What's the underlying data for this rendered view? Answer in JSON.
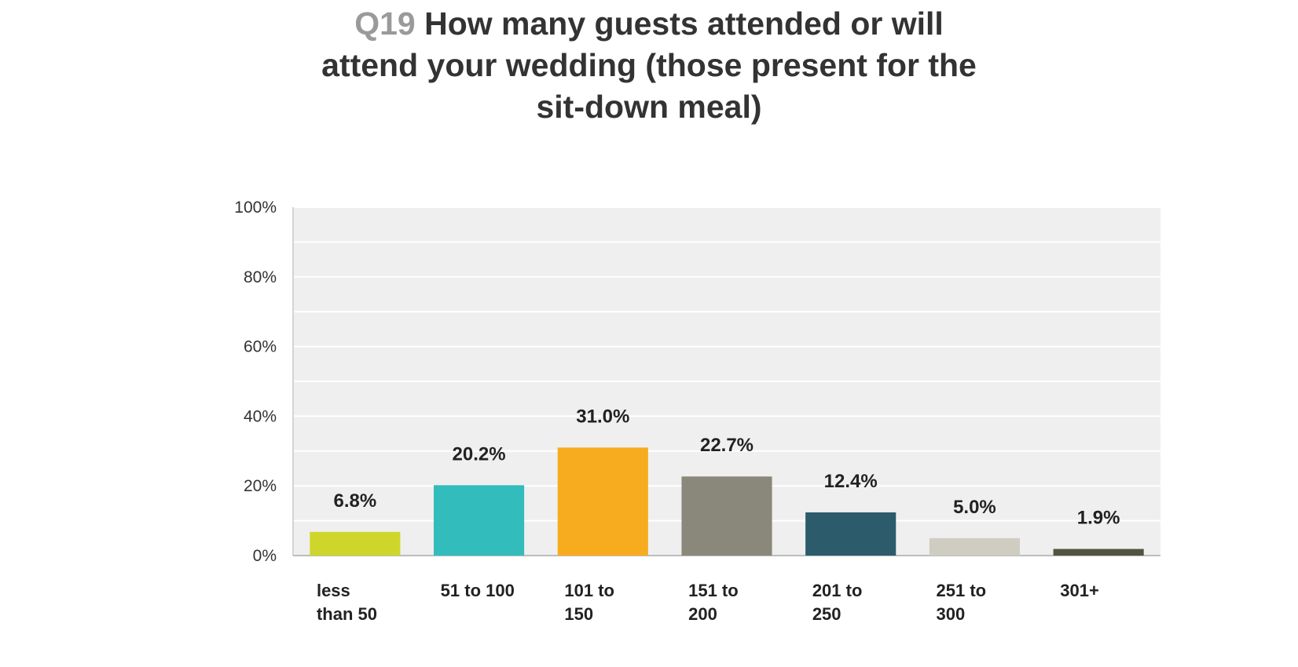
{
  "chart_data": {
    "type": "bar",
    "title_number": "Q19",
    "title_lines": [
      "How many guests attended or will",
      "attend your wedding (those present for the",
      "sit-down meal)"
    ],
    "categories": [
      [
        "less",
        "than 50"
      ],
      [
        "51 to 100"
      ],
      [
        "101 to",
        "150"
      ],
      [
        "151 to",
        "200"
      ],
      [
        "201 to",
        "250"
      ],
      [
        "251 to",
        "300"
      ],
      [
        "301+"
      ]
    ],
    "values": [
      6.8,
      20.2,
      31.0,
      22.7,
      12.4,
      5.0,
      1.9
    ],
    "data_labels": [
      "6.8%",
      "20.2%",
      "31.0%",
      "22.7%",
      "12.4%",
      "5.0%",
      "1.9%"
    ],
    "colors": [
      "#cfd62b",
      "#33bcbc",
      "#f7ac1f",
      "#8a887a",
      "#2c5b6b",
      "#cfcdc1",
      "#535440"
    ],
    "ylim": [
      0,
      100
    ],
    "yticks": [
      0,
      20,
      40,
      60,
      80,
      100
    ],
    "ytick_labels": [
      "0%",
      "20%",
      "40%",
      "60%",
      "80%",
      "100%"
    ],
    "grid": true,
    "plot_background": "#efefef",
    "grid_color": "#ffffff",
    "label_color": "#222222"
  }
}
